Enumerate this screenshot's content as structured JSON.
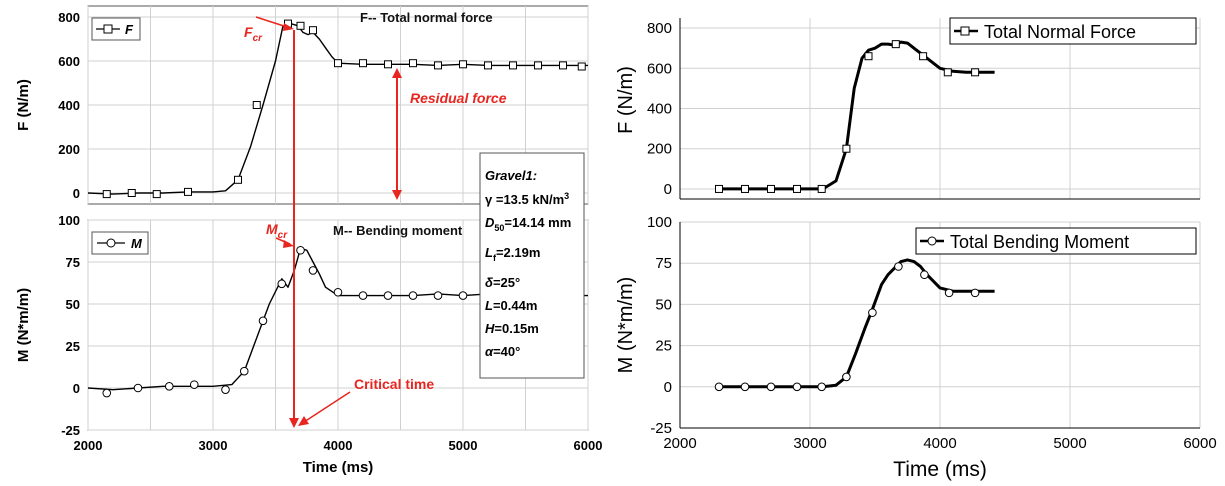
{
  "chart_data": [
    {
      "type": "line",
      "panel": "left-top",
      "title": "F-- Total normal force",
      "legend": {
        "title": "F",
        "position": "top-left"
      },
      "ylabel": "F (N/m)",
      "xlabel": "",
      "xlim": [
        2000,
        6000
      ],
      "ylim": [
        -50,
        850
      ],
      "yticks": [
        "0",
        "200",
        "400",
        "600",
        "800"
      ],
      "grid": true,
      "series": [
        {
          "name": "F",
          "x": [
            2000,
            2200,
            2400,
            2600,
            2800,
            3000,
            3100,
            3200,
            3300,
            3400,
            3500,
            3560,
            3620,
            3680,
            3720,
            3760,
            3800,
            3850,
            3900,
            3950,
            4000,
            4200,
            4400,
            4600,
            4800,
            5000,
            5200,
            5400,
            5600,
            5800,
            6000
          ],
          "y": [
            0,
            -5,
            0,
            0,
            5,
            5,
            10,
            60,
            210,
            400,
            600,
            760,
            770,
            760,
            730,
            720,
            730,
            700,
            660,
            620,
            590,
            585,
            585,
            585,
            580,
            585,
            580,
            580,
            580,
            580,
            580
          ]
        }
      ],
      "markers": {
        "x": [
          2150,
          2350,
          2550,
          2800,
          3200,
          3350,
          3600,
          3700,
          3800,
          4000,
          4200,
          4400,
          4600,
          4800,
          5000,
          5200,
          5400,
          5600,
          5800,
          5950
        ],
        "y": [
          -5,
          0,
          -5,
          5,
          60,
          400,
          770,
          760,
          740,
          590,
          590,
          585,
          590,
          580,
          585,
          580,
          580,
          580,
          580,
          575
        ]
      },
      "annotations": {
        "critical_force": "F",
        "critical_force_sub": "cr",
        "residual": "Residual force"
      }
    },
    {
      "type": "line",
      "panel": "left-bottom",
      "title": "M-- Bending moment",
      "legend": {
        "title": "M",
        "position": "top-left"
      },
      "ylabel": "M (N*m/m)",
      "xlabel": "Time (ms)",
      "xlim": [
        2000,
        6000
      ],
      "ylim": [
        -25,
        100
      ],
      "yticks": [
        "-25",
        "0",
        "25",
        "50",
        "75",
        "100"
      ],
      "xticks": [
        "2000",
        "3000",
        "4000",
        "5000",
        "6000"
      ],
      "grid": true,
      "series": [
        {
          "name": "M",
          "x": [
            2000,
            2200,
            2400,
            2600,
            2800,
            3000,
            3150,
            3250,
            3350,
            3450,
            3550,
            3600,
            3650,
            3700,
            3750,
            3800,
            3850,
            3900,
            4000,
            4200,
            4400,
            4600,
            4800,
            5000,
            5200,
            5400,
            5600,
            5800,
            6000
          ],
          "y": [
            0,
            -1,
            0,
            1,
            1,
            1,
            2,
            10,
            30,
            50,
            65,
            60,
            70,
            83,
            82,
            75,
            68,
            60,
            55,
            55,
            55,
            55,
            56,
            55,
            56,
            55,
            56,
            55,
            55
          ]
        }
      ],
      "markers": {
        "x": [
          2150,
          2400,
          2650,
          2850,
          3100,
          3250,
          3400,
          3550,
          3700,
          3800,
          4000,
          4200,
          4400,
          4600,
          4800,
          5000,
          5200,
          5400,
          5600,
          5800
        ],
        "y": [
          -3,
          0,
          1,
          2,
          -1,
          10,
          40,
          62,
          82,
          70,
          57,
          55,
          55,
          55,
          55,
          55,
          55,
          55,
          55,
          55
        ]
      },
      "annotations": {
        "critical_moment": "M",
        "critical_moment_sub": "cr",
        "critical_time": "Critical time"
      }
    },
    {
      "type": "line",
      "panel": "right-top",
      "legend": {
        "title": "Total Normal Force",
        "position": "top-right"
      },
      "ylabel": "F (N/m)",
      "xlim": [
        2000,
        6000
      ],
      "ylim": [
        -50,
        850
      ],
      "yticks": [
        "0",
        "200",
        "400",
        "600",
        "800"
      ],
      "grid": true,
      "series": [
        {
          "name": "Total Normal Force",
          "x": [
            2300,
            2500,
            2700,
            2900,
            3100,
            3200,
            3280,
            3340,
            3400,
            3450,
            3500,
            3550,
            3600,
            3650,
            3700,
            3750,
            3800,
            3850,
            3900,
            4000,
            4100,
            4200,
            4300,
            4420
          ],
          "y": [
            0,
            0,
            0,
            0,
            0,
            40,
            200,
            500,
            650,
            690,
            700,
            720,
            720,
            715,
            730,
            725,
            700,
            675,
            650,
            600,
            585,
            580,
            580,
            580
          ]
        }
      ],
      "markers": {
        "x": [
          2300,
          2500,
          2700,
          2900,
          3090,
          3280,
          3450,
          3660,
          3870,
          4060,
          4270
        ],
        "y": [
          0,
          0,
          0,
          0,
          0,
          200,
          660,
          720,
          660,
          580,
          580
        ]
      }
    },
    {
      "type": "line",
      "panel": "right-bottom",
      "legend": {
        "title": "Total Bending Moment",
        "position": "top-right"
      },
      "ylabel": "M (N*m/m)",
      "xlabel": "Time (ms)",
      "xlim": [
        2000,
        6000
      ],
      "ylim": [
        -25,
        100
      ],
      "yticks": [
        "-25",
        "0",
        "25",
        "50",
        "75",
        "100"
      ],
      "xticks": [
        "2000",
        "3000",
        "4000",
        "5000",
        "6000"
      ],
      "grid": true,
      "series": [
        {
          "name": "Total Bending Moment",
          "x": [
            2300,
            2500,
            2700,
            2900,
            3100,
            3200,
            3280,
            3350,
            3420,
            3480,
            3550,
            3600,
            3650,
            3700,
            3750,
            3800,
            3850,
            3900,
            4000,
            4100,
            4200,
            4300,
            4420
          ],
          "y": [
            0,
            0,
            0,
            0,
            0,
            1,
            6,
            20,
            35,
            47,
            62,
            68,
            72,
            76,
            77,
            76,
            73,
            68,
            60,
            58,
            58,
            58,
            58
          ]
        }
      ],
      "markers": {
        "x": [
          2300,
          2500,
          2700,
          2900,
          3090,
          3280,
          3480,
          3680,
          3880,
          4070,
          4270
        ],
        "y": [
          0,
          0,
          0,
          0,
          0,
          6,
          45,
          73,
          68,
          57,
          57
        ]
      }
    }
  ],
  "info_box": {
    "material": "Gravel1",
    "gamma": "13.5 kN/m",
    "gamma_exp": "3",
    "d50_sub": "50",
    "d50": "=14.14 mm",
    "lf_sub": "f",
    "lf": "=2.19m",
    "delta": "=25°",
    "L": "=0.44m",
    "H": "=0.15m",
    "alpha": "=40°"
  },
  "colors": {
    "line": "#000000",
    "annotation": "#e8251f",
    "grid": "#d0d0d0"
  }
}
